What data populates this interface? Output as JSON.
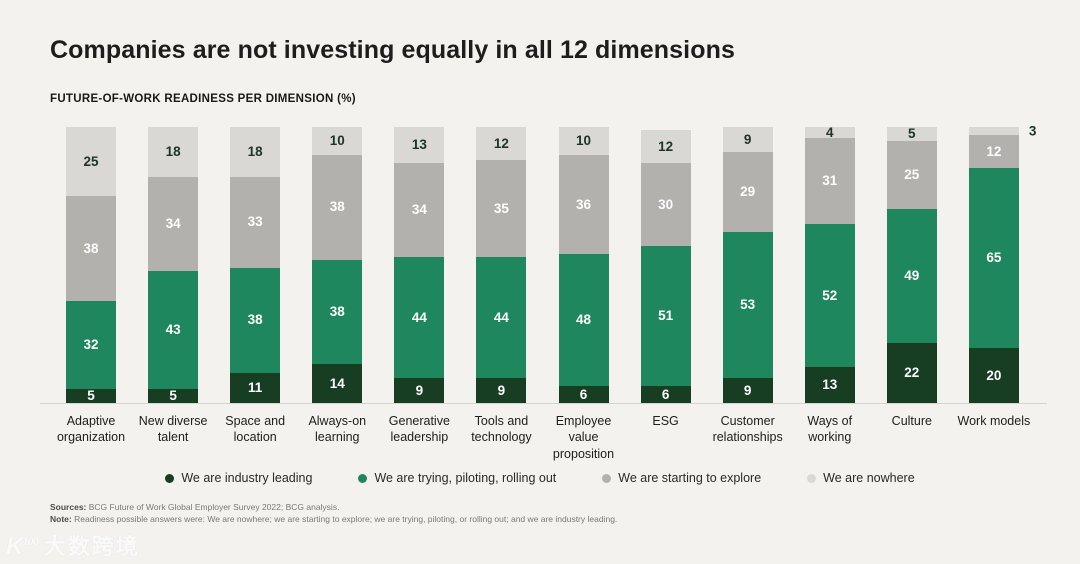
{
  "page": {
    "title": "Companies are not investing equally in all 12 dimensions",
    "subtitle": "FUTURE-OF-WORK READINESS PER DIMENSION (%)"
  },
  "chart_data": {
    "type": "bar",
    "stacked": true,
    "unit": "%",
    "title": "FUTURE-OF-WORK READINESS PER DIMENSION (%)",
    "ylim": [
      0,
      100
    ],
    "grid": false,
    "legend_position": "bottom",
    "categories": [
      "Adaptive organization",
      "New diverse talent",
      "Space and location",
      "Always-on learning",
      "Generative leadership",
      "Tools and technology",
      "Employee value proposition",
      "ESG",
      "Customer relationships",
      "Ways of working",
      "Culture",
      "Work models"
    ],
    "series": [
      {
        "name": "We are industry leading",
        "color": "#173d22",
        "label_color": "#ffffff",
        "values": [
          5,
          5,
          11,
          14,
          9,
          9,
          6,
          6,
          9,
          13,
          22,
          20
        ]
      },
      {
        "name": "We are trying, piloting, rolling out",
        "color": "#1f875e",
        "label_color": "#ffffff",
        "values": [
          32,
          43,
          38,
          38,
          44,
          44,
          48,
          51,
          53,
          52,
          49,
          65
        ]
      },
      {
        "name": "We are starting to explore",
        "color": "#b2b1ae",
        "label_color": "#ffffff",
        "values": [
          38,
          34,
          33,
          38,
          34,
          35,
          36,
          30,
          29,
          31,
          25,
          12
        ]
      },
      {
        "name": "We are nowhere",
        "color": "#d9d8d4",
        "label_color": "#1c3526",
        "outside_label_max": 3,
        "values": [
          25,
          18,
          18,
          10,
          13,
          12,
          10,
          12,
          9,
          4,
          5,
          3
        ]
      }
    ]
  },
  "footer": {
    "sources_label": "Sources:",
    "sources_text": " BCG Future of Work Global Employer Survey 2022; BCG analysis.",
    "note_label": "Note:",
    "note_text": " Readiness possible answers were: We are nowhere; we are starting to explore; we are trying, piloting, or rolling out; and we are industry leading."
  },
  "watermark": {
    "logo": "K",
    "logo_sup": "100",
    "text": "大数跨境"
  },
  "colors": {
    "background": "#f3f2ef",
    "axis_line": "#d6d4d0",
    "title_text": "#1e1d1b"
  }
}
